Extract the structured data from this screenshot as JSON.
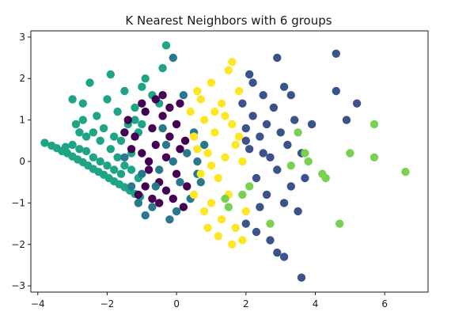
{
  "chart_data": {
    "type": "scatter",
    "title": "K Nearest Neighbors with 6 groups",
    "xlabel": "",
    "ylabel": "",
    "xlim": [
      -4.2,
      7.25
    ],
    "ylim": [
      -3.15,
      3.15
    ],
    "xticks": [
      -4,
      -2,
      0,
      2,
      4,
      6
    ],
    "yticks": [
      -3,
      -2,
      -1,
      0,
      1,
      2,
      3
    ],
    "xtick_labels": [
      "−4",
      "−2",
      "0",
      "2",
      "4",
      "6"
    ],
    "ytick_labels": [
      "−3",
      "−2",
      "−1",
      "0",
      "1",
      "2",
      "3"
    ],
    "grid": false,
    "legend": "none",
    "series": [
      {
        "color": "#20a486",
        "points": [
          [
            -3.8,
            0.45
          ],
          [
            -3.6,
            0.38
          ],
          [
            -3.45,
            0.32
          ],
          [
            -3.3,
            0.25
          ],
          [
            -3.15,
            0.2
          ],
          [
            -3.0,
            0.12
          ],
          [
            -2.85,
            0.05
          ],
          [
            -2.7,
            -0.02
          ],
          [
            -2.55,
            -0.1
          ],
          [
            -2.4,
            -0.18
          ],
          [
            -2.25,
            -0.25
          ],
          [
            -2.1,
            -0.32
          ],
          [
            -1.95,
            -0.4
          ],
          [
            -1.8,
            -0.48
          ],
          [
            -1.65,
            -0.55
          ],
          [
            -1.5,
            -0.62
          ],
          [
            -1.35,
            -0.7
          ],
          [
            -1.2,
            -0.78
          ],
          [
            -1.05,
            -0.85
          ],
          [
            -3.2,
            0.35
          ],
          [
            -3.0,
            0.4
          ],
          [
            -2.8,
            0.3
          ],
          [
            -2.6,
            0.25
          ],
          [
            -2.4,
            0.1
          ],
          [
            -2.2,
            0.0
          ],
          [
            -2.0,
            -0.1
          ],
          [
            -1.8,
            -0.2
          ],
          [
            -1.6,
            -0.3
          ],
          [
            -2.9,
            0.9
          ],
          [
            -2.7,
            1.4
          ],
          [
            -2.5,
            1.9
          ],
          [
            -2.3,
            1.1
          ],
          [
            -2.1,
            0.8
          ],
          [
            -2.0,
            1.5
          ],
          [
            -1.9,
            2.1
          ],
          [
            -1.8,
            0.6
          ],
          [
            -1.7,
            1.2
          ],
          [
            -1.6,
            0.5
          ],
          [
            -1.5,
            1.7
          ],
          [
            -1.4,
            0.9
          ],
          [
            -1.3,
            0.2
          ],
          [
            -1.2,
            1.3
          ],
          [
            -1.1,
            0.7
          ],
          [
            -1.0,
            1.8
          ],
          [
            -2.6,
            0.6
          ],
          [
            -2.4,
            0.7
          ],
          [
            -2.2,
            0.5
          ],
          [
            -2.8,
            0.7
          ],
          [
            -1.9,
            0.3
          ],
          [
            -1.7,
            0.1
          ],
          [
            -1.5,
            -0.1
          ],
          [
            -1.3,
            -0.2
          ],
          [
            -1.1,
            -0.4
          ],
          [
            -0.9,
            2.0
          ],
          [
            -0.7,
            1.6
          ],
          [
            -0.5,
            1.4
          ],
          [
            -1.2,
            1.0
          ],
          [
            -1.0,
            0.9
          ],
          [
            -0.3,
            2.8
          ],
          [
            -0.4,
            2.25
          ],
          [
            -3.0,
            1.5
          ],
          [
            -2.7,
            1.0
          ]
        ]
      },
      {
        "color": "#440154",
        "points": [
          [
            -1.4,
            1.0
          ],
          [
            -1.2,
            0.6
          ],
          [
            -1.0,
            0.2
          ],
          [
            -0.9,
            1.2
          ],
          [
            -0.8,
            -0.2
          ],
          [
            -0.7,
            0.8
          ],
          [
            -0.6,
            0.4
          ],
          [
            -0.5,
            -0.5
          ],
          [
            -0.4,
            1.1
          ],
          [
            -0.3,
            0.1
          ],
          [
            -0.2,
            0.6
          ],
          [
            -0.1,
            -0.9
          ],
          [
            0.0,
            0.9
          ],
          [
            0.1,
            0.3
          ],
          [
            0.2,
            -1.1
          ],
          [
            0.25,
            0.5
          ],
          [
            -1.1,
            -0.8
          ],
          [
            -0.9,
            -0.6
          ],
          [
            -0.7,
            -0.9
          ],
          [
            -0.5,
            -1.0
          ],
          [
            -0.3,
            -0.7
          ],
          [
            -0.6,
            1.5
          ],
          [
            -0.4,
            1.6
          ],
          [
            -0.2,
            1.3
          ],
          [
            -1.3,
            0.3
          ],
          [
            -1.5,
            0.7
          ],
          [
            -0.8,
            0.0
          ],
          [
            0.0,
            -0.3
          ],
          [
            0.3,
            -0.6
          ],
          [
            0.1,
            1.4
          ],
          [
            -1.0,
            1.4
          ]
        ]
      },
      {
        "color": "#2a788e",
        "points": [
          [
            -1.3,
            -0.6
          ],
          [
            -1.1,
            -1.0
          ],
          [
            -0.9,
            -1.3
          ],
          [
            -0.7,
            -1.1
          ],
          [
            -0.5,
            -0.2
          ],
          [
            -0.3,
            0.4
          ],
          [
            -0.1,
            0.0
          ],
          [
            0.1,
            -0.5
          ],
          [
            0.3,
            0.2
          ],
          [
            0.4,
            -0.9
          ],
          [
            0.5,
            0.7
          ],
          [
            0.6,
            0.0
          ],
          [
            0.7,
            -0.5
          ],
          [
            0.8,
            0.4
          ],
          [
            -0.2,
            -1.4
          ],
          [
            0.0,
            -1.2
          ],
          [
            -1.0,
            -0.3
          ],
          [
            -1.5,
            0.1
          ],
          [
            -0.4,
            0.8
          ],
          [
            -0.1,
            2.5
          ],
          [
            0.2,
            1.6
          ],
          [
            -0.6,
            -0.6
          ],
          [
            0.6,
            -0.3
          ]
        ]
      },
      {
        "color": "#fde725",
        "points": [
          [
            0.4,
            1.2
          ],
          [
            0.5,
            0.6
          ],
          [
            0.6,
            1.7
          ],
          [
            0.7,
            -0.3
          ],
          [
            0.8,
            1.0
          ],
          [
            0.9,
            0.2
          ],
          [
            1.0,
            1.9
          ],
          [
            1.0,
            -1.0
          ],
          [
            1.1,
            0.7
          ],
          [
            1.2,
            -0.4
          ],
          [
            1.3,
            1.4
          ],
          [
            1.3,
            -1.4
          ],
          [
            1.4,
            0.1
          ],
          [
            1.5,
            2.2
          ],
          [
            1.5,
            -0.8
          ],
          [
            1.6,
            0.9
          ],
          [
            1.7,
            -1.6
          ],
          [
            1.7,
            0.4
          ],
          [
            1.8,
            1.7
          ],
          [
            1.9,
            -1.9
          ],
          [
            1.9,
            0.0
          ],
          [
            2.0,
            -1.2
          ],
          [
            0.9,
            -1.6
          ],
          [
            1.2,
            -1.8
          ],
          [
            0.7,
            1.5
          ],
          [
            1.6,
            2.4
          ],
          [
            0.5,
            -0.8
          ],
          [
            1.0,
            -0.1
          ],
          [
            1.4,
            1.1
          ],
          [
            0.8,
            -1.2
          ],
          [
            1.6,
            -2.0
          ],
          [
            1.1,
            1.2
          ],
          [
            0.6,
            0.3
          ],
          [
            1.8,
            0.6
          ]
        ]
      },
      {
        "color": "#3b528b",
        "points": [
          [
            1.9,
            1.4
          ],
          [
            2.0,
            0.8
          ],
          [
            2.1,
            2.1
          ],
          [
            2.1,
            0.3
          ],
          [
            2.2,
            1.1
          ],
          [
            2.3,
            -0.4
          ],
          [
            2.4,
            0.6
          ],
          [
            2.5,
            1.6
          ],
          [
            2.6,
            -0.8
          ],
          [
            2.6,
            0.9
          ],
          [
            2.7,
            0.1
          ],
          [
            2.8,
            1.3
          ],
          [
            2.9,
            -0.2
          ],
          [
            3.0,
            0.7
          ],
          [
            3.1,
            1.8
          ],
          [
            3.1,
            -1.0
          ],
          [
            3.2,
            0.4
          ],
          [
            3.3,
            -0.6
          ],
          [
            3.4,
            1.0
          ],
          [
            3.5,
            -1.2
          ],
          [
            3.6,
            0.2
          ],
          [
            3.7,
            -0.4
          ],
          [
            3.9,
            0.9
          ],
          [
            2.0,
            -1.5
          ],
          [
            2.3,
            -1.7
          ],
          [
            2.7,
            -1.9
          ],
          [
            2.9,
            -2.2
          ],
          [
            3.1,
            -2.3
          ],
          [
            3.6,
            -2.8
          ],
          [
            2.9,
            2.5
          ],
          [
            4.6,
            2.6
          ],
          [
            4.6,
            1.7
          ],
          [
            4.9,
            1.0
          ],
          [
            5.2,
            1.4
          ],
          [
            2.2,
            1.9
          ],
          [
            2.5,
            0.2
          ],
          [
            3.3,
            1.6
          ],
          [
            2.4,
            -1.1
          ],
          [
            2.0,
            0.5
          ]
        ]
      },
      {
        "color": "#7ad151",
        "points": [
          [
            1.5,
            -1.1
          ],
          [
            1.9,
            -0.8
          ],
          [
            2.1,
            -0.6
          ],
          [
            3.5,
            0.7
          ],
          [
            3.7,
            0.2
          ],
          [
            3.8,
            0.0
          ],
          [
            4.2,
            -0.3
          ],
          [
            4.3,
            -0.4
          ],
          [
            5.0,
            0.2
          ],
          [
            5.7,
            0.9
          ],
          [
            5.7,
            0.1
          ],
          [
            6.6,
            -0.25
          ],
          [
            4.7,
            -1.5
          ],
          [
            2.7,
            -1.5
          ],
          [
            1.4,
            -0.9
          ],
          [
            3.3,
            -0.1
          ]
        ]
      }
    ]
  }
}
